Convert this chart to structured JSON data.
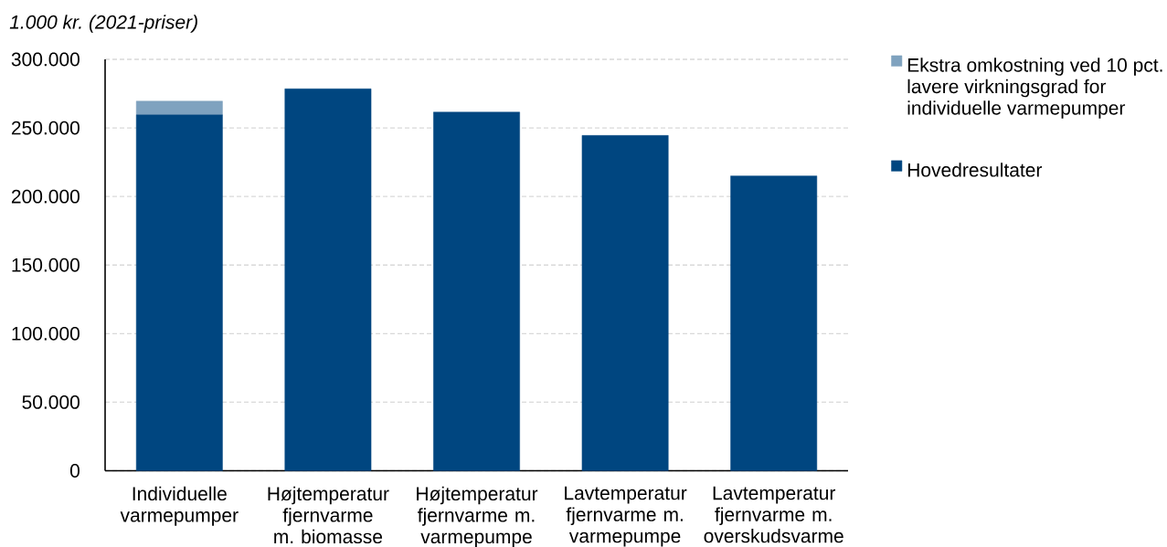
{
  "chart_data": {
    "type": "bar",
    "stacked": true,
    "ylabel": "1.000 kr. (2021-priser)",
    "categories": [
      "Individuelle varmepumper",
      "Højtemperatur fjernvarme m. biomasse",
      "Højtemperatur fjernvarme m. varmepumpe",
      "Lavtemperatur fjernvarme m. varmepumpe",
      "Lavtemperatur fjernvarme m. overskudsvarme"
    ],
    "series": [
      {
        "name": "Hovedresultater",
        "color": "#004680",
        "values": [
          259500,
          278500,
          261500,
          244500,
          215000
        ]
      },
      {
        "name": "Ekstra omkostning ved 10 pct. lavere virkningsgrad for individuelle varmepumper",
        "color": "#7fa2bf",
        "values": [
          10000,
          null,
          null,
          null,
          null
        ]
      }
    ],
    "ylim": [
      0,
      300000
    ],
    "yticks": [
      0,
      {
        "value": 50000,
        "label": "50.000"
      },
      {
        "value": 100000,
        "label": "100.000"
      },
      {
        "value": 150000,
        "label": "150.000"
      },
      {
        "value": 200000,
        "label": "200.000"
      },
      {
        "value": 250000,
        "label": "250.000"
      },
      {
        "value": 300000,
        "label": "300.000"
      }
    ],
    "grid": "y",
    "legend": "right"
  }
}
